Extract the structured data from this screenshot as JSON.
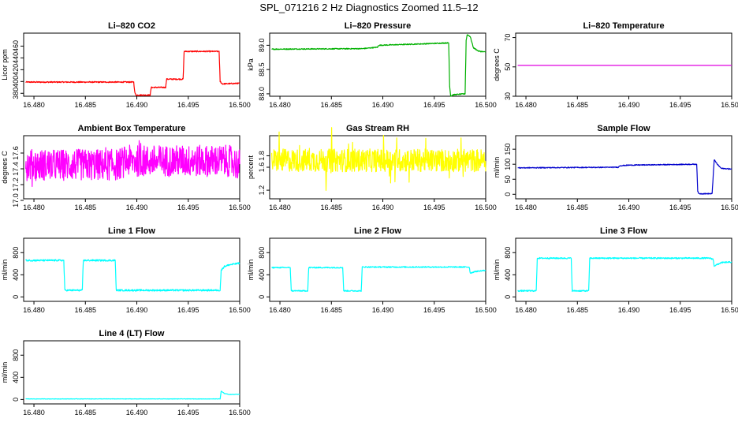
{
  "title": "SPL_071216  2 Hz Diagnostics Zoomed 11.5–12",
  "chart_data": [
    {
      "type": "line",
      "title": "Li–820 CO2",
      "xlabel": "",
      "ylabel": "Licor ppm",
      "xlim": [
        16.479,
        16.5
      ],
      "ylim": [
        375,
        482
      ],
      "xticks": [
        16.48,
        16.485,
        16.49,
        16.495,
        16.5
      ],
      "xtick_labels": [
        "16.480",
        "16.485",
        "16.490",
        "16.495",
        "16.500"
      ],
      "yticks": [
        380,
        400,
        420,
        440,
        460
      ],
      "ytick_labels": [
        "380",
        "400",
        "420",
        "440",
        "460"
      ],
      "grid": false,
      "noise": 1,
      "spike": 0,
      "series": [
        {
          "color": "#ff0000",
          "points": [
            [
              16.4792,
              399
            ],
            [
              16.4897,
              399
            ],
            [
              16.4898,
              382
            ],
            [
              16.4899,
              377
            ],
            [
              16.4913,
              377
            ],
            [
              16.4914,
              390
            ],
            [
              16.4928,
              390
            ],
            [
              16.4929,
              404
            ],
            [
              16.4945,
              404
            ],
            [
              16.4946,
              451
            ],
            [
              16.498,
              451
            ],
            [
              16.4981,
              400
            ],
            [
              16.4983,
              396
            ],
            [
              16.5,
              397
            ]
          ]
        }
      ]
    },
    {
      "type": "line",
      "title": "Li–820 Pressure",
      "xlabel": "",
      "ylabel": "kPa",
      "xlim": [
        16.479,
        16.5
      ],
      "ylim": [
        87.95,
        89.25
      ],
      "xticks": [
        16.48,
        16.485,
        16.49,
        16.495,
        16.5
      ],
      "xtick_labels": [
        "16.480",
        "16.485",
        "16.490",
        "16.495",
        "16.500"
      ],
      "yticks": [
        88.0,
        88.5,
        89.0
      ],
      "ytick_labels": [
        "88.0",
        "88.5",
        "89.0"
      ],
      "grid": false,
      "noise": 0.01,
      "spike": 0,
      "series": [
        {
          "color": "#00b000",
          "points": [
            [
              16.4792,
              88.92
            ],
            [
              16.488,
              88.93
            ],
            [
              16.4895,
              88.96
            ],
            [
              16.4896,
              89.0
            ],
            [
              16.494,
              89.03
            ],
            [
              16.4964,
              89.05
            ],
            [
              16.4965,
              88.15
            ],
            [
              16.4966,
              87.95
            ],
            [
              16.4968,
              87.98
            ],
            [
              16.498,
              88.0
            ],
            [
              16.4981,
              89.1
            ],
            [
              16.4982,
              89.22
            ],
            [
              16.4985,
              89.18
            ],
            [
              16.4988,
              88.95
            ],
            [
              16.4993,
              88.88
            ],
            [
              16.5,
              88.86
            ]
          ]
        }
      ]
    },
    {
      "type": "line",
      "title": "Li–820 Temperature",
      "xlabel": "",
      "ylabel": "degrees C",
      "xlim": [
        16.479,
        16.5
      ],
      "ylim": [
        30,
        73
      ],
      "xticks": [
        16.48,
        16.485,
        16.49,
        16.495,
        16.5
      ],
      "xtick_labels": [
        "16.480",
        "16.485",
        "16.490",
        "16.495",
        "16.500"
      ],
      "yticks": [
        30,
        50,
        70
      ],
      "ytick_labels": [
        "30",
        "50",
        "70"
      ],
      "grid": false,
      "noise": 0,
      "spike": 0,
      "series": [
        {
          "color": "#e000e0",
          "points": [
            [
              16.4792,
              51
            ],
            [
              16.5,
              51
            ]
          ]
        }
      ]
    },
    {
      "type": "line",
      "title": "Ambient Box Temperature",
      "xlabel": "",
      "ylabel": "degrees C",
      "xlim": [
        16.479,
        16.5
      ],
      "ylim": [
        17.02,
        17.82
      ],
      "xticks": [
        16.48,
        16.485,
        16.49,
        16.495,
        16.5
      ],
      "xtick_labels": [
        "16.480",
        "16.485",
        "16.490",
        "16.495",
        "16.500"
      ],
      "yticks": [
        17.0,
        17.2,
        17.4,
        17.6
      ],
      "ytick_labels": [
        "17.0",
        "17.2",
        "17.4",
        "17.6"
      ],
      "grid": false,
      "noise": 0.2,
      "spike": 0.18,
      "series": [
        {
          "color": "#ff00ff",
          "points": [
            [
              16.4792,
              17.45
            ],
            [
              16.488,
              17.45
            ],
            [
              16.489,
              17.5
            ],
            [
              16.499,
              17.5
            ],
            [
              16.5,
              17.45
            ]
          ]
        }
      ]
    },
    {
      "type": "line",
      "title": "Gas Stream RH",
      "xlabel": "",
      "ylabel": "percent",
      "xlim": [
        16.479,
        16.5
      ],
      "ylim": [
        1.05,
        2.15
      ],
      "xticks": [
        16.48,
        16.485,
        16.49,
        16.495,
        16.5
      ],
      "xtick_labels": [
        "16.480",
        "16.485",
        "16.490",
        "16.495",
        "16.500"
      ],
      "yticks": [
        1.2,
        1.6,
        1.8
      ],
      "ytick_labels": [
        "1.2",
        "1.6",
        "1.8"
      ],
      "grid": false,
      "noise": 0.2,
      "spike": 0.45,
      "series": [
        {
          "color": "#ffff00",
          "points": [
            [
              16.4792,
              1.72
            ],
            [
              16.5,
              1.72
            ]
          ]
        }
      ]
    },
    {
      "type": "line",
      "title": "Sample Flow",
      "xlabel": "",
      "ylabel": "ml/min",
      "xlim": [
        16.479,
        16.5
      ],
      "ylim": [
        -15,
        195
      ],
      "xticks": [
        16.48,
        16.485,
        16.49,
        16.495,
        16.5
      ],
      "xtick_labels": [
        "16.480",
        "16.485",
        "16.490",
        "16.495",
        "16.500"
      ],
      "yticks": [
        0,
        50,
        100,
        150
      ],
      "ytick_labels": [
        "0",
        "50",
        "100",
        "150"
      ],
      "grid": false,
      "noise": 1.5,
      "spike": 0,
      "series": [
        {
          "color": "#0000cc",
          "points": [
            [
              16.4792,
              88
            ],
            [
              16.489,
              90
            ],
            [
              16.4891,
              95
            ],
            [
              16.49,
              97
            ],
            [
              16.4966,
              100
            ],
            [
              16.4967,
              10
            ],
            [
              16.4968,
              2
            ],
            [
              16.4981,
              2
            ],
            [
              16.4982,
              60
            ],
            [
              16.4983,
              115
            ],
            [
              16.4986,
              100
            ],
            [
              16.499,
              86
            ],
            [
              16.5,
              84
            ]
          ]
        }
      ]
    },
    {
      "type": "line",
      "title": "Line 1 Flow",
      "xlabel": "",
      "ylabel": "ml/min",
      "xlim": [
        16.479,
        16.5
      ],
      "ylim": [
        -80,
        1060
      ],
      "xticks": [
        16.48,
        16.485,
        16.49,
        16.495,
        16.5
      ],
      "xtick_labels": [
        "16.480",
        "16.485",
        "16.490",
        "16.495",
        "16.500"
      ],
      "yticks": [
        0,
        400,
        800
      ],
      "ytick_labels": [
        "0",
        "400",
        "800"
      ],
      "grid": false,
      "noise": 15,
      "spike": 0,
      "series": [
        {
          "color": "#00ffff",
          "points": [
            [
              16.4792,
              660
            ],
            [
              16.4829,
              660
            ],
            [
              16.483,
              120
            ],
            [
              16.4847,
              120
            ],
            [
              16.4848,
              660
            ],
            [
              16.4879,
              660
            ],
            [
              16.488,
              120
            ],
            [
              16.4981,
              120
            ],
            [
              16.4982,
              480
            ],
            [
              16.4985,
              550
            ],
            [
              16.499,
              580
            ],
            [
              16.5,
              610
            ]
          ]
        }
      ]
    },
    {
      "type": "line",
      "title": "Line 2 Flow",
      "xlabel": "",
      "ylabel": "ml/min",
      "xlim": [
        16.479,
        16.5
      ],
      "ylim": [
        -80,
        1060
      ],
      "xticks": [
        16.48,
        16.485,
        16.49,
        16.495,
        16.5
      ],
      "xtick_labels": [
        "16.480",
        "16.485",
        "16.490",
        "16.495",
        "16.500"
      ],
      "yticks": [
        0,
        400,
        800
      ],
      "ytick_labels": [
        "0",
        "400",
        "800"
      ],
      "grid": false,
      "noise": 10,
      "spike": 0,
      "series": [
        {
          "color": "#00ffff",
          "points": [
            [
              16.4792,
              530
            ],
            [
              16.481,
              530
            ],
            [
              16.4811,
              110
            ],
            [
              16.4827,
              110
            ],
            [
              16.4828,
              530
            ],
            [
              16.4861,
              530
            ],
            [
              16.4862,
              110
            ],
            [
              16.4879,
              110
            ],
            [
              16.488,
              540
            ],
            [
              16.4984,
              540
            ],
            [
              16.4985,
              430
            ],
            [
              16.499,
              460
            ],
            [
              16.5,
              480
            ]
          ]
        }
      ]
    },
    {
      "type": "line",
      "title": "Line 3 Flow",
      "xlabel": "",
      "ylabel": "ml/min",
      "xlim": [
        16.479,
        16.5
      ],
      "ylim": [
        -80,
        1060
      ],
      "xticks": [
        16.48,
        16.485,
        16.49,
        16.495,
        16.5
      ],
      "xtick_labels": [
        "16.480",
        "16.485",
        "16.490",
        "16.495",
        "16.500"
      ],
      "yticks": [
        0,
        400,
        800
      ],
      "ytick_labels": [
        "0",
        "400",
        "800"
      ],
      "grid": false,
      "noise": 12,
      "spike": 0,
      "series": [
        {
          "color": "#00ffff",
          "points": [
            [
              16.4792,
              110
            ],
            [
              16.481,
              110
            ],
            [
              16.4811,
              700
            ],
            [
              16.4844,
              700
            ],
            [
              16.4845,
              110
            ],
            [
              16.4861,
              110
            ],
            [
              16.4862,
              700
            ],
            [
              16.4979,
              700
            ],
            [
              16.4982,
              680
            ],
            [
              16.4983,
              560
            ],
            [
              16.499,
              620
            ],
            [
              16.5,
              630
            ]
          ]
        }
      ]
    },
    {
      "type": "line",
      "title": "Line 4 (LT) Flow",
      "xlabel": "",
      "ylabel": "ml/min",
      "xlim": [
        16.479,
        16.5
      ],
      "ylim": [
        -80,
        1060
      ],
      "xticks": [
        16.48,
        16.485,
        16.49,
        16.495,
        16.5
      ],
      "xtick_labels": [
        "16.480",
        "16.485",
        "16.490",
        "16.495",
        "16.500"
      ],
      "yticks": [
        0,
        400,
        800
      ],
      "ytick_labels": [
        "0",
        "400",
        "800"
      ],
      "grid": false,
      "noise": 3,
      "spike": 0,
      "series": [
        {
          "color": "#00ffff",
          "points": [
            [
              16.4792,
              10
            ],
            [
              16.4981,
              10
            ],
            [
              16.4982,
              150
            ],
            [
              16.4985,
              110
            ],
            [
              16.499,
              90
            ],
            [
              16.5,
              95
            ]
          ]
        }
      ]
    }
  ]
}
